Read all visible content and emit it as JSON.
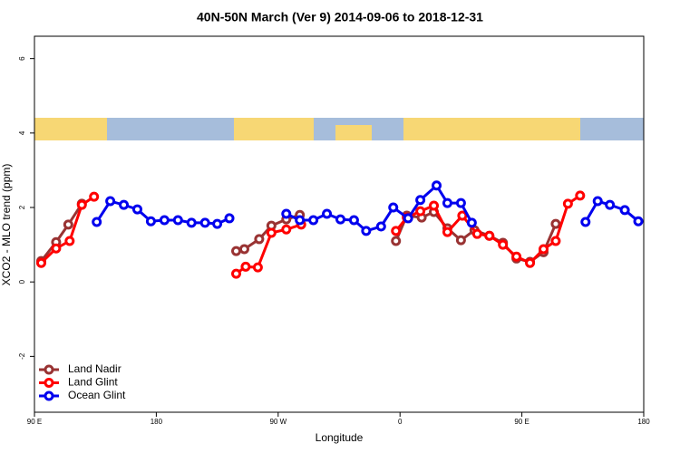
{
  "chart_data": {
    "type": "line",
    "title": "40N-50N March (Ver 9)   2014-09-06 to 2018-12-31",
    "x_label": "Longitude",
    "y_label": "XCO2 - MLO trend (ppm)",
    "xlim": [
      90,
      540
    ],
    "ylim": [
      -3.5,
      6.6
    ],
    "xticks": [
      {
        "value": 90,
        "label": "90 E"
      },
      180,
      {
        "value": 270,
        "label": "90 W"
      },
      {
        "value": 360,
        "label": "0"
      },
      {
        "value": 450,
        "label": "90 E"
      },
      {
        "value": 540,
        "label": "180"
      }
    ],
    "yticks": [
      -2,
      0,
      2,
      4,
      6
    ],
    "legend": "bottom-left",
    "series": [
      {
        "name": "Land Nadir",
        "color": "#993333",
        "x": [
          95,
          106,
          115,
          125,
          null,
          239,
          245,
          256,
          265,
          276,
          286,
          null,
          357,
          365,
          376,
          385,
          395,
          405,
          415,
          426,
          436,
          446,
          456,
          466,
          475
        ],
        "values": [
          0.56,
          1.07,
          1.54,
          2.1,
          null,
          0.83,
          0.88,
          1.15,
          1.51,
          1.68,
          1.8,
          null,
          1.1,
          1.78,
          1.73,
          1.88,
          1.44,
          1.12,
          1.39,
          1.24,
          1.05,
          0.63,
          0.54,
          0.8,
          1.56
        ]
      },
      {
        "name": "Land Glint",
        "color": "#ff0000",
        "x": [
          95,
          106,
          116,
          125,
          134,
          null,
          239,
          246,
          255,
          265,
          276,
          287,
          null,
          357,
          365,
          375,
          385,
          395,
          406,
          417,
          426,
          436,
          446,
          456,
          466,
          475,
          484,
          493
        ],
        "values": [
          0.51,
          0.9,
          1.1,
          2.07,
          2.29,
          null,
          0.22,
          0.41,
          0.39,
          1.32,
          1.41,
          1.54,
          null,
          1.37,
          1.73,
          1.9,
          2.05,
          1.34,
          1.78,
          1.29,
          1.24,
          1.0,
          0.68,
          0.51,
          0.88,
          1.1,
          2.1,
          2.32
        ]
      },
      {
        "name": "Ocean Glint",
        "color": "#0000ee",
        "x": [
          136,
          146,
          156,
          166,
          176,
          186,
          196,
          206,
          216,
          225,
          234,
          null,
          276,
          286,
          296,
          306,
          316,
          326,
          335,
          346,
          355,
          366,
          375,
          387,
          395,
          405,
          413,
          null,
          497,
          506,
          515,
          526,
          536
        ],
        "values": [
          1.61,
          2.17,
          2.07,
          1.95,
          1.63,
          1.66,
          1.66,
          1.59,
          1.59,
          1.56,
          1.71,
          null,
          1.83,
          1.66,
          1.66,
          1.83,
          1.68,
          1.66,
          1.37,
          1.49,
          2.0,
          1.71,
          2.2,
          2.59,
          2.12,
          2.12,
          1.59,
          null,
          1.61,
          2.17,
          2.07,
          1.93,
          1.63
        ]
      }
    ]
  }
}
